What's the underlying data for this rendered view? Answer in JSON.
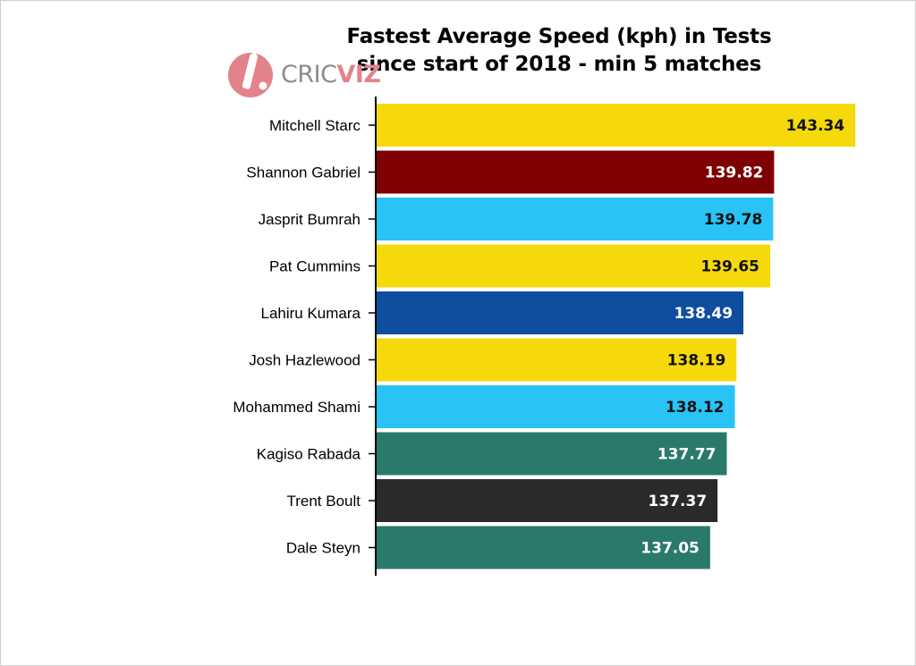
{
  "title_lines": [
    "Fastest Average Speed (kph) in Tests",
    "since start of 2018 - min 5 matches"
  ],
  "logo": {
    "text_a": "CRIC",
    "text_b": "VIZ",
    "icon": "cricket-bat-ball-icon",
    "colors": {
      "grey": "#8c8c8c",
      "pink": "#e2838a"
    }
  },
  "chart_data": {
    "type": "bar",
    "orientation": "horizontal",
    "title": "Fastest Average Speed (kph) in Tests since start of 2018 - min 5 matches",
    "categories": [
      "Mitchell Starc",
      "Shannon Gabriel",
      "Jasprit Bumrah",
      "Pat Cummins",
      "Lahiru Kumara",
      "Josh Hazlewood",
      "Mohammed Shami",
      "Kagiso Rabada",
      "Trent Boult",
      "Dale Steyn"
    ],
    "values": [
      143.34,
      139.82,
      139.78,
      139.65,
      138.49,
      138.19,
      138.12,
      137.77,
      137.37,
      137.05
    ],
    "value_labels": [
      "143.34",
      "139.82",
      "139.78",
      "139.65",
      "138.49",
      "138.19",
      "138.12",
      "137.77",
      "137.37",
      "137.05"
    ],
    "bar_colors": [
      "#f5d90a",
      "#7e0000",
      "#29c3f5",
      "#f5d90a",
      "#0f4da0",
      "#f5d90a",
      "#29c3f5",
      "#2a7a6c",
      "#2a2a2a",
      "#2a7a6c"
    ],
    "label_colors": [
      "#111111",
      "#ffffff",
      "#111111",
      "#111111",
      "#ffffff",
      "#111111",
      "#111111",
      "#ffffff",
      "#ffffff",
      "#ffffff"
    ],
    "xlim": [
      122.6,
      144.3
    ],
    "xlabel": "",
    "ylabel": "",
    "grid": false,
    "legend": "none"
  }
}
